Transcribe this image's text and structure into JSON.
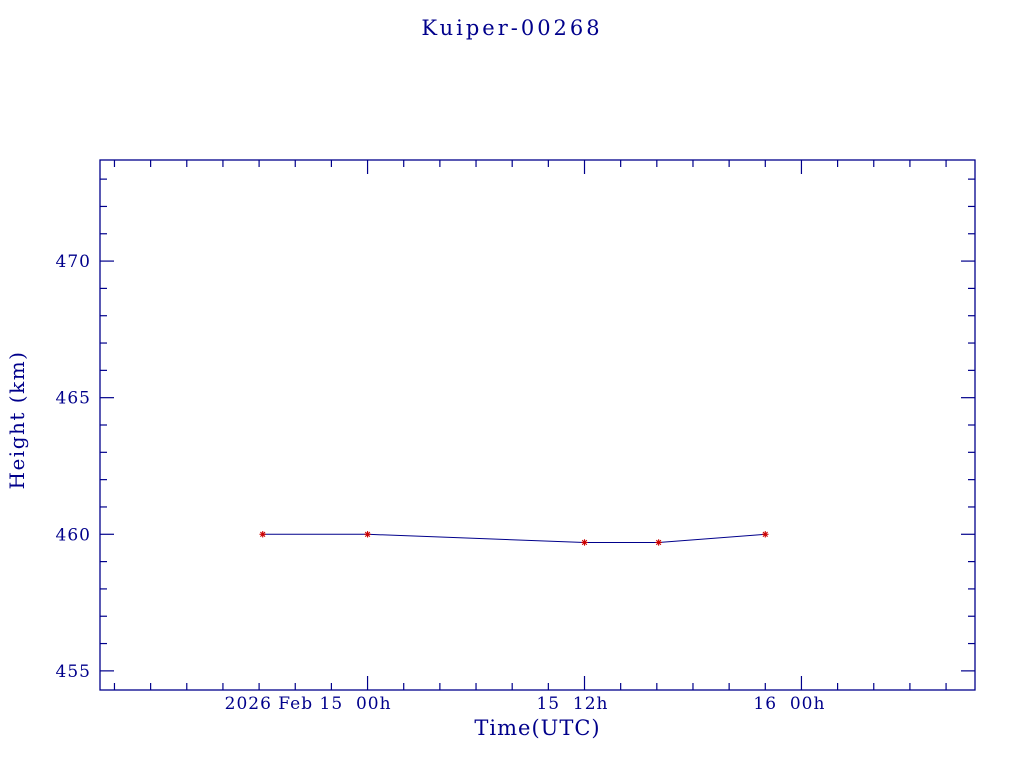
{
  "page": {
    "background": "#ffffff"
  },
  "chart_data": {
    "type": "line",
    "title": "Kuiper-00268",
    "xlabel": "Time(UTC)",
    "ylabel": "Height (km)",
    "x_unit": "hours since 2026 Feb 15 00:00 UTC",
    "x": [
      -5.8,
      0,
      12,
      16.1,
      22
    ],
    "y": [
      460.0,
      460.0,
      459.7,
      459.7,
      460.0
    ],
    "xlim": [
      -14.8,
      33.6
    ],
    "ylim": [
      454.3,
      473.7
    ],
    "yticks": [
      {
        "value": 455,
        "label": "455"
      },
      {
        "value": 460,
        "label": "460"
      },
      {
        "value": 465,
        "label": "465"
      },
      {
        "value": 470,
        "label": "470"
      }
    ],
    "xticks": [
      {
        "hours": 0,
        "label": "2026 Feb 15  00h"
      },
      {
        "hours": 12,
        "label": "15  12h"
      },
      {
        "hours": 24,
        "label": "16  00h"
      }
    ],
    "minor_x_step_hours": 2,
    "minor_y_step_km": 1,
    "grid": false,
    "legend": "none",
    "marker": "asterisk",
    "colors": {
      "frame": "#00008b",
      "text": "#00008b",
      "line": "#00008b",
      "marker": "#cc0000"
    }
  }
}
